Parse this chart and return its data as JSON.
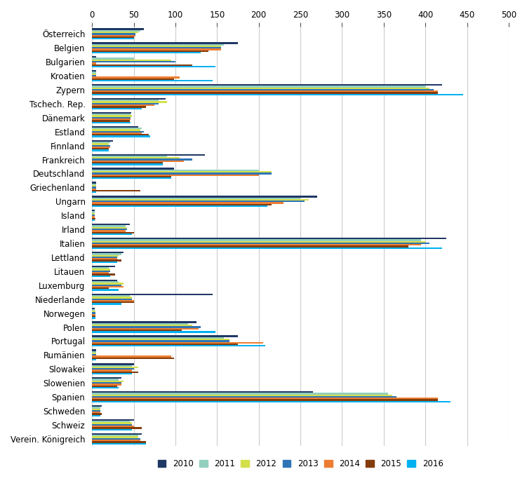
{
  "countries": [
    "Österreich",
    "Belgien",
    "Bulgarien",
    "Kroatien",
    "Zypern",
    "Tschech. Rep.",
    "Dänemark",
    "Estland",
    "Finnland",
    "Frankreich",
    "Deutschland",
    "Griechenland",
    "Ungarn",
    "Island",
    "Irland",
    "Italien",
    "Lettland",
    "Litauen",
    "Luxemburg",
    "Niederlande",
    "Norwegen",
    "Polen",
    "Portugal",
    "Rumänien",
    "Slowakei",
    "Slowenien",
    "Spanien",
    "Schweden",
    "Schweiz",
    "Verein. Königreich"
  ],
  "years": [
    "2010",
    "2011",
    "2012",
    "2013",
    "2014",
    "2015",
    "2016"
  ],
  "legend_colors": {
    "2010": "#1f3864",
    "2011": "#92d0be",
    "2012": "#d4e04a",
    "2013": "#2e75b6",
    "2014": "#ed7d31",
    "2015": "#843c0c",
    "2016": "#00b0f0"
  },
  "data": {
    "2010": [
      62,
      175,
      5,
      5,
      420,
      88,
      47,
      55,
      25,
      135,
      98,
      5,
      270,
      3,
      45,
      425,
      38,
      28,
      30,
      145,
      3,
      125,
      175,
      5,
      50,
      35,
      265,
      12,
      50,
      60
    ],
    "2011": [
      58,
      158,
      50,
      5,
      400,
      80,
      46,
      60,
      22,
      90,
      200,
      5,
      250,
      3,
      40,
      395,
      35,
      20,
      32,
      45,
      3,
      115,
      158,
      5,
      48,
      32,
      355,
      10,
      45,
      55
    ],
    "2012": [
      55,
      155,
      95,
      5,
      405,
      90,
      48,
      58,
      20,
      105,
      215,
      5,
      260,
      3,
      42,
      400,
      32,
      22,
      38,
      48,
      4,
      120,
      165,
      5,
      55,
      38,
      360,
      10,
      48,
      55
    ],
    "2013": [
      52,
      155,
      100,
      5,
      410,
      80,
      46,
      62,
      22,
      120,
      215,
      5,
      255,
      3,
      42,
      405,
      30,
      22,
      35,
      48,
      4,
      130,
      165,
      5,
      50,
      35,
      365,
      10,
      48,
      58
    ],
    "2014": [
      52,
      155,
      5,
      105,
      415,
      75,
      46,
      60,
      22,
      110,
      200,
      5,
      230,
      3,
      40,
      395,
      30,
      20,
      38,
      50,
      4,
      128,
      205,
      95,
      48,
      35,
      415,
      10,
      50,
      58
    ],
    "2015": [
      50,
      140,
      120,
      98,
      415,
      65,
      45,
      68,
      20,
      85,
      95,
      58,
      215,
      4,
      50,
      380,
      35,
      28,
      20,
      50,
      4,
      108,
      175,
      98,
      55,
      30,
      415,
      12,
      60,
      65
    ],
    "2016": [
      50,
      130,
      148,
      145,
      445,
      60,
      46,
      70,
      20,
      85,
      95,
      5,
      210,
      3,
      48,
      420,
      30,
      22,
      32,
      35,
      4,
      148,
      208,
      5,
      48,
      32,
      430,
      10,
      48,
      65
    ]
  },
  "xlim": [
    0,
    500
  ],
  "xticks": [
    0,
    50,
    100,
    150,
    200,
    250,
    300,
    350,
    400,
    450,
    500
  ],
  "bar_height": 0.115,
  "figsize": [
    7.51,
    7.16
  ],
  "dpi": 100
}
